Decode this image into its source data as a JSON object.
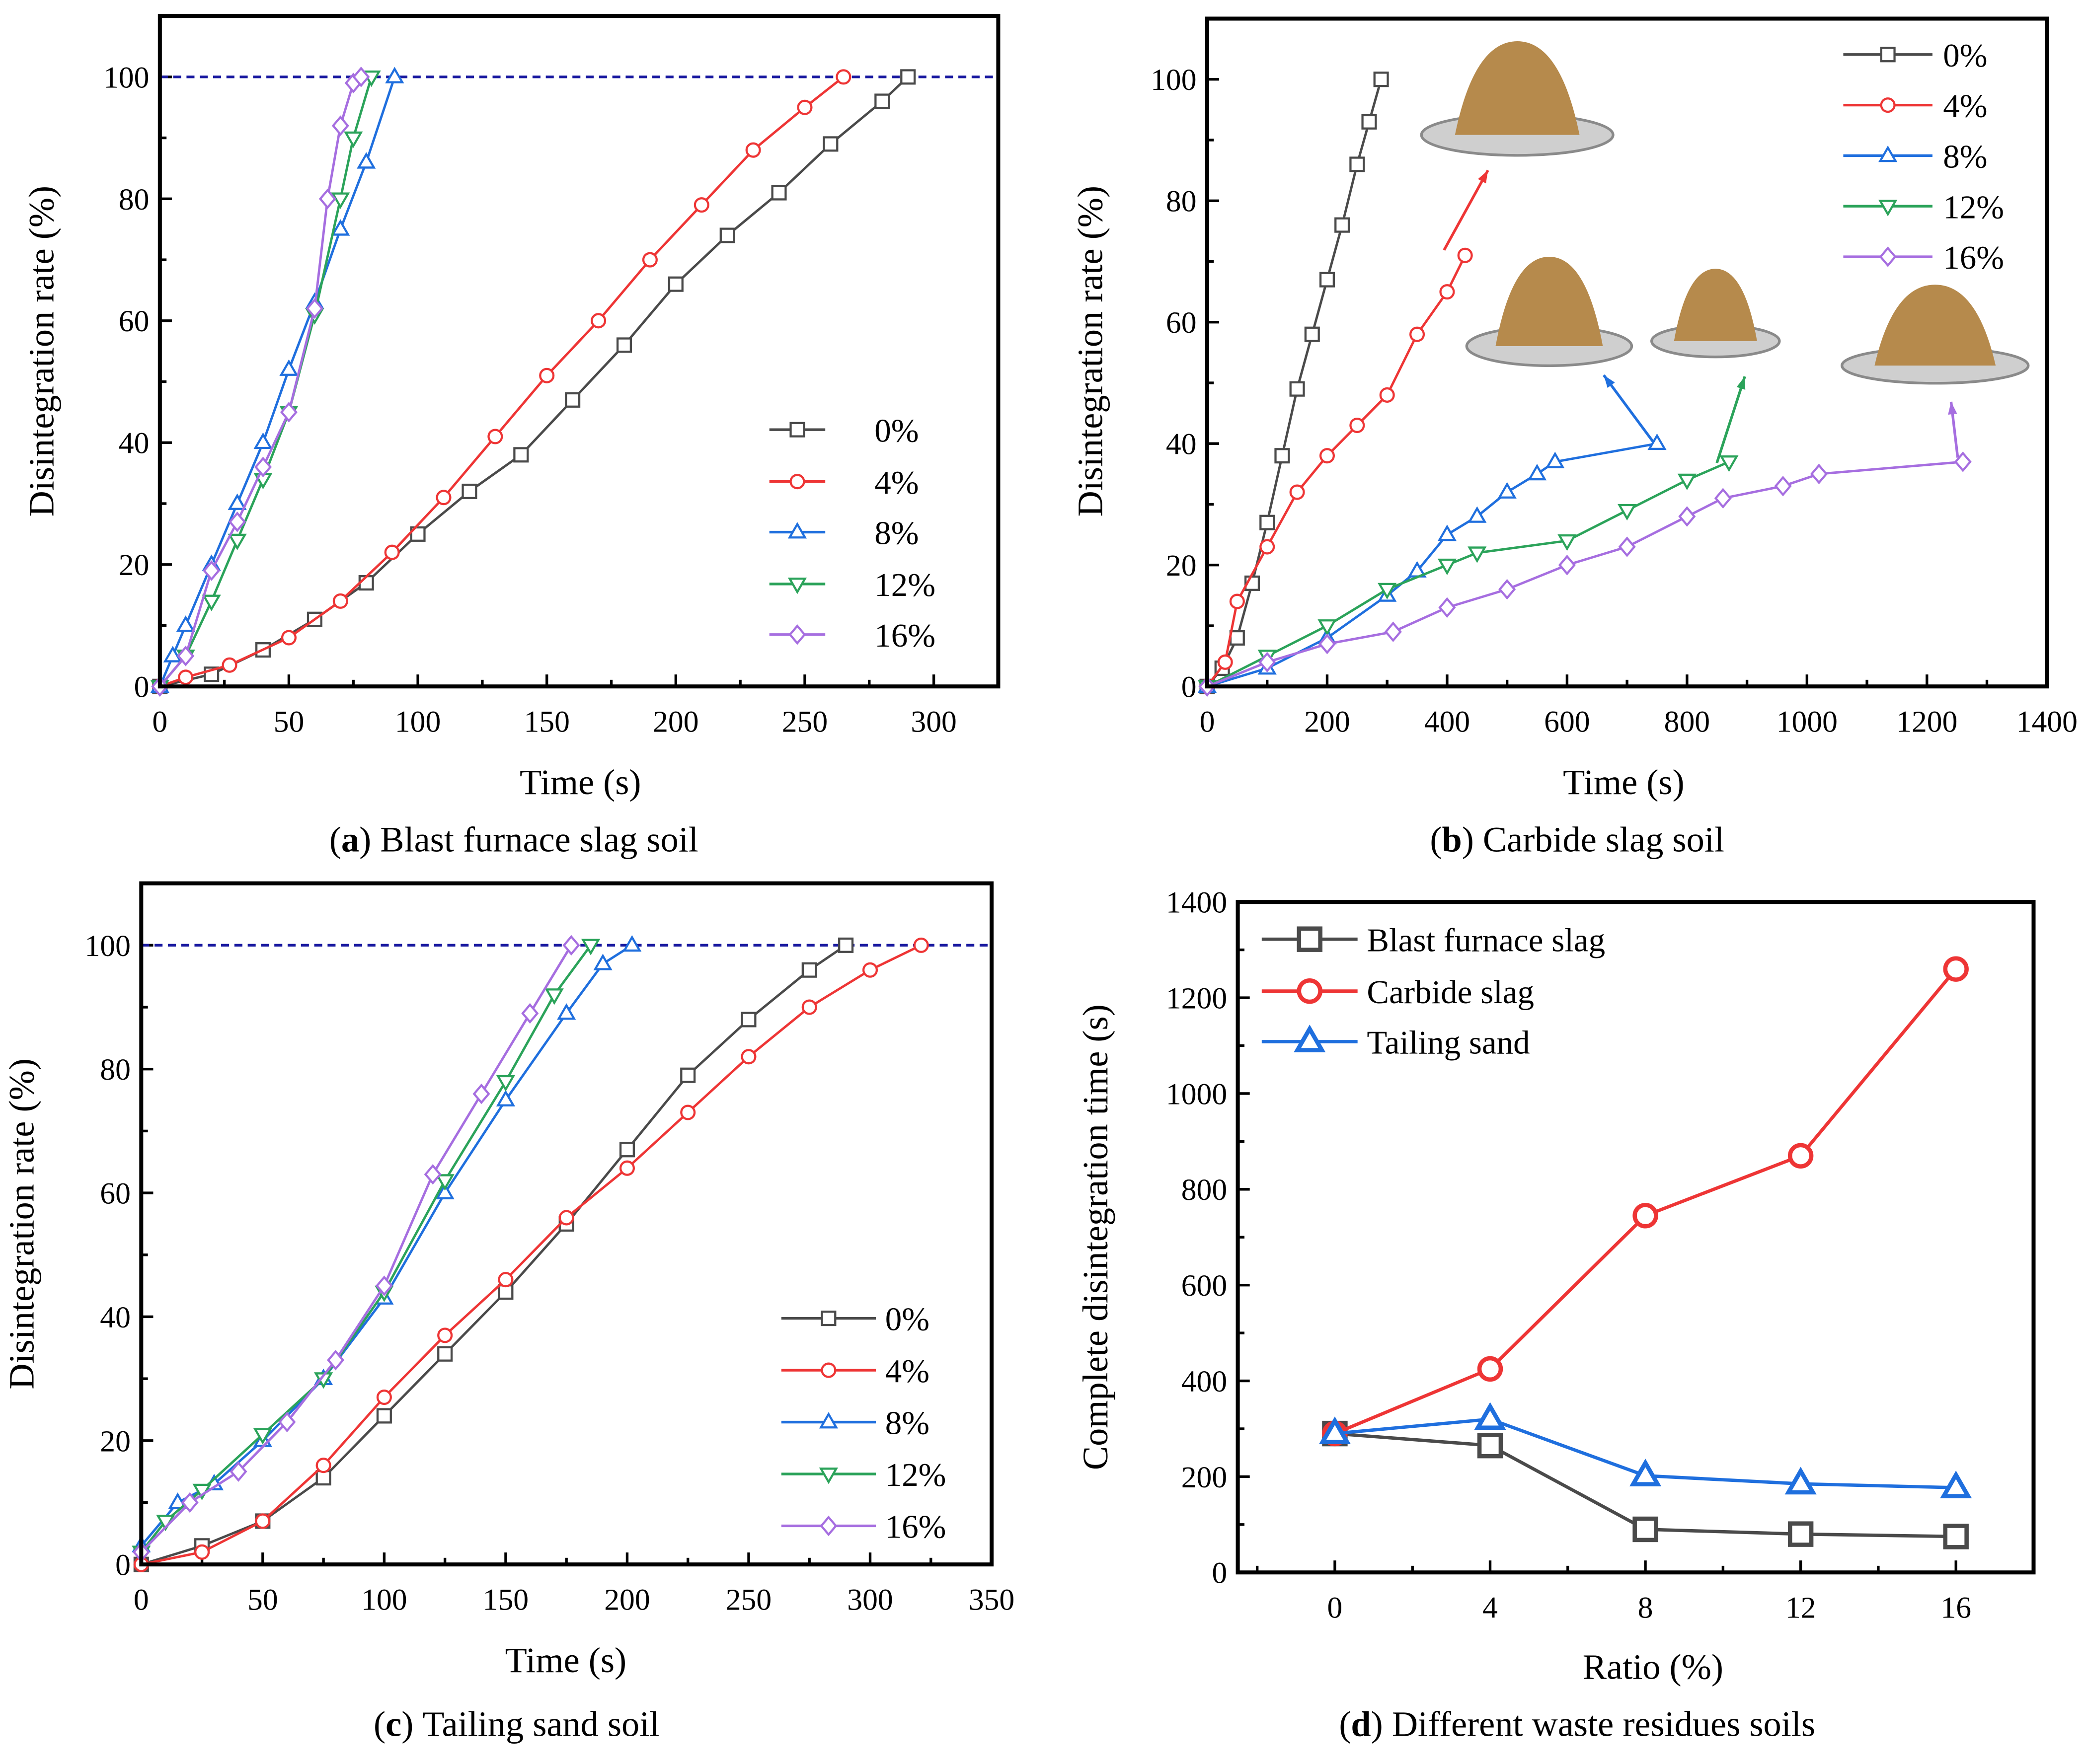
{
  "colors": {
    "s0": "#4a4a4a",
    "s4": "#ee3535",
    "s8": "#1f6fde",
    "s12": "#2ba35a",
    "s16": "#a66ee0",
    "ref": "#1a1aa0"
  },
  "chart_data": [
    {
      "id": "a",
      "type": "line",
      "caption_letter": "a",
      "caption_text": "Blast furnace slag soil",
      "xlabel": "Time (s)",
      "ylabel": "Disintegration rate (%)",
      "xlim": [
        0,
        325
      ],
      "ylim": [
        0,
        110
      ],
      "xticks": [
        0,
        50,
        100,
        150,
        200,
        250,
        300
      ],
      "yticks": [
        0,
        20,
        40,
        60,
        80,
        100
      ],
      "reference_line": 100,
      "legend_position": "bottom-right",
      "series": [
        {
          "name": "0%",
          "marker": "square",
          "color": "s0",
          "points": [
            [
              0,
              0
            ],
            [
              20,
              2
            ],
            [
              40,
              6
            ],
            [
              60,
              11
            ],
            [
              80,
              17
            ],
            [
              100,
              25
            ],
            [
              120,
              32
            ],
            [
              140,
              38
            ],
            [
              160,
              47
            ],
            [
              180,
              56
            ],
            [
              200,
              66
            ],
            [
              220,
              74
            ],
            [
              240,
              81
            ],
            [
              260,
              89
            ],
            [
              280,
              96
            ],
            [
              290,
              100
            ]
          ]
        },
        {
          "name": "4%",
          "marker": "circle",
          "color": "s4",
          "points": [
            [
              0,
              0
            ],
            [
              10,
              1.5
            ],
            [
              27,
              3.5
            ],
            [
              50,
              8
            ],
            [
              70,
              14
            ],
            [
              90,
              22
            ],
            [
              110,
              31
            ],
            [
              130,
              41
            ],
            [
              150,
              51
            ],
            [
              170,
              60
            ],
            [
              190,
              70
            ],
            [
              210,
              79
            ],
            [
              230,
              88
            ],
            [
              250,
              95
            ],
            [
              265,
              100
            ]
          ]
        },
        {
          "name": "8%",
          "marker": "triangle-up",
          "color": "s8",
          "points": [
            [
              0,
              0
            ],
            [
              5,
              5
            ],
            [
              10,
              10
            ],
            [
              20,
              20
            ],
            [
              30,
              30
            ],
            [
              40,
              40
            ],
            [
              50,
              52
            ],
            [
              60,
              63
            ],
            [
              70,
              75
            ],
            [
              80,
              86
            ],
            [
              91,
              100
            ]
          ]
        },
        {
          "name": "12%",
          "marker": "triangle-down",
          "color": "s12",
          "points": [
            [
              0,
              0
            ],
            [
              10,
              5
            ],
            [
              20,
              14
            ],
            [
              30,
              24
            ],
            [
              40,
              34
            ],
            [
              50,
              45
            ],
            [
              60,
              61
            ],
            [
              70,
              80
            ],
            [
              75,
              90
            ],
            [
              82,
              100
            ]
          ]
        },
        {
          "name": "16%",
          "marker": "diamond",
          "color": "s16",
          "points": [
            [
              0,
              0
            ],
            [
              10,
              5
            ],
            [
              20,
              19
            ],
            [
              30,
              27
            ],
            [
              40,
              36
            ],
            [
              50,
              45
            ],
            [
              60,
              62
            ],
            [
              65,
              80
            ],
            [
              70,
              92
            ],
            [
              75,
              99
            ],
            [
              78,
              100
            ]
          ]
        }
      ]
    },
    {
      "id": "b",
      "type": "line",
      "caption_letter": "b",
      "caption_text": "Carbide slag soil",
      "xlabel": "Time (s)",
      "ylabel": "Disintegration rate (%)",
      "xlim": [
        0,
        1400
      ],
      "ylim": [
        0,
        110
      ],
      "xticks": [
        0,
        200,
        400,
        600,
        800,
        1000,
        1200,
        1400
      ],
      "yticks": [
        0,
        20,
        40,
        60,
        80,
        100
      ],
      "legend_position": "top-right",
      "series": [
        {
          "name": "0%",
          "marker": "square",
          "color": "s0",
          "points": [
            [
              0,
              0
            ],
            [
              25,
              3
            ],
            [
              50,
              8
            ],
            [
              75,
              17
            ],
            [
              100,
              27
            ],
            [
              125,
              38
            ],
            [
              150,
              49
            ],
            [
              175,
              58
            ],
            [
              200,
              67
            ],
            [
              225,
              76
            ],
            [
              250,
              86
            ],
            [
              270,
              93
            ],
            [
              290,
              100
            ]
          ]
        },
        {
          "name": "4%",
          "marker": "circle",
          "color": "s4",
          "points": [
            [
              0,
              0
            ],
            [
              30,
              4
            ],
            [
              50,
              14
            ],
            [
              100,
              23
            ],
            [
              150,
              32
            ],
            [
              200,
              38
            ],
            [
              250,
              43
            ],
            [
              300,
              48
            ],
            [
              350,
              58
            ],
            [
              400,
              65
            ],
            [
              430,
              71
            ]
          ]
        },
        {
          "name": "8%",
          "marker": "triangle-up",
          "color": "s8",
          "points": [
            [
              0,
              0
            ],
            [
              100,
              3
            ],
            [
              200,
              8
            ],
            [
              300,
              15
            ],
            [
              350,
              19
            ],
            [
              400,
              25
            ],
            [
              450,
              28
            ],
            [
              500,
              32
            ],
            [
              550,
              35
            ],
            [
              580,
              37
            ],
            [
              750,
              40
            ]
          ]
        },
        {
          "name": "12%",
          "marker": "triangle-down",
          "color": "s12",
          "points": [
            [
              0,
              0
            ],
            [
              100,
              5
            ],
            [
              200,
              10
            ],
            [
              300,
              16
            ],
            [
              400,
              20
            ],
            [
              450,
              22
            ],
            [
              600,
              24
            ],
            [
              700,
              29
            ],
            [
              800,
              34
            ],
            [
              870,
              37
            ]
          ]
        },
        {
          "name": "16%",
          "marker": "diamond",
          "color": "s16",
          "points": [
            [
              0,
              0
            ],
            [
              100,
              4
            ],
            [
              200,
              7
            ],
            [
              310,
              9
            ],
            [
              400,
              13
            ],
            [
              500,
              16
            ],
            [
              600,
              20
            ],
            [
              700,
              23
            ],
            [
              800,
              28
            ],
            [
              860,
              31
            ],
            [
              960,
              33
            ],
            [
              1020,
              35
            ],
            [
              1260,
              37
            ]
          ]
        }
      ]
    },
    {
      "id": "c",
      "type": "line",
      "caption_letter": "c",
      "caption_text": "Tailing sand soil",
      "xlabel": "Time (s)",
      "ylabel": "Disintegration rate (%)",
      "xlim": [
        0,
        350
      ],
      "ylim": [
        0,
        110
      ],
      "xticks": [
        0,
        50,
        100,
        150,
        200,
        250,
        300,
        350
      ],
      "yticks": [
        0,
        20,
        40,
        60,
        80,
        100
      ],
      "reference_line": 100,
      "legend_position": "bottom-right",
      "series": [
        {
          "name": "0%",
          "marker": "square",
          "color": "s0",
          "points": [
            [
              0,
              0
            ],
            [
              25,
              3
            ],
            [
              50,
              7
            ],
            [
              75,
              14
            ],
            [
              100,
              24
            ],
            [
              125,
              34
            ],
            [
              150,
              44
            ],
            [
              175,
              55
            ],
            [
              200,
              67
            ],
            [
              225,
              79
            ],
            [
              250,
              88
            ],
            [
              275,
              96
            ],
            [
              290,
              100
            ]
          ]
        },
        {
          "name": "4%",
          "marker": "circle",
          "color": "s4",
          "points": [
            [
              0,
              0
            ],
            [
              25,
              2
            ],
            [
              50,
              7
            ],
            [
              75,
              16
            ],
            [
              100,
              27
            ],
            [
              125,
              37
            ],
            [
              150,
              46
            ],
            [
              175,
              56
            ],
            [
              200,
              64
            ],
            [
              225,
              73
            ],
            [
              250,
              82
            ],
            [
              275,
              90
            ],
            [
              300,
              96
            ],
            [
              321,
              100
            ]
          ]
        },
        {
          "name": "8%",
          "marker": "triangle-up",
          "color": "s8",
          "points": [
            [
              0,
              3
            ],
            [
              15,
              10
            ],
            [
              30,
              13
            ],
            [
              50,
              20
            ],
            [
              75,
              30
            ],
            [
              100,
              43
            ],
            [
              125,
              60
            ],
            [
              150,
              75
            ],
            [
              175,
              89
            ],
            [
              190,
              97
            ],
            [
              202,
              100
            ]
          ]
        },
        {
          "name": "12%",
          "marker": "triangle-down",
          "color": "s12",
          "points": [
            [
              0,
              2
            ],
            [
              10,
              7
            ],
            [
              25,
              12
            ],
            [
              50,
              21
            ],
            [
              75,
              30
            ],
            [
              100,
              44
            ],
            [
              125,
              62
            ],
            [
              150,
              78
            ],
            [
              170,
              92
            ],
            [
              185,
              100
            ]
          ]
        },
        {
          "name": "16%",
          "marker": "diamond",
          "color": "s16",
          "points": [
            [
              0,
              2
            ],
            [
              20,
              10
            ],
            [
              40,
              15
            ],
            [
              60,
              23
            ],
            [
              80,
              33
            ],
            [
              100,
              45
            ],
            [
              120,
              63
            ],
            [
              140,
              76
            ],
            [
              160,
              89
            ],
            [
              177,
              100
            ]
          ]
        }
      ]
    },
    {
      "id": "d",
      "type": "line",
      "caption_letter": "d",
      "caption_text": "Different waste residues soils",
      "xlabel": "Ratio (%)",
      "ylabel": "Complete disintegration time (s)",
      "xlim": [
        -2.5,
        18
      ],
      "ylim": [
        0,
        1400
      ],
      "xticks": [
        0,
        4,
        8,
        12,
        16
      ],
      "yticks": [
        0,
        200,
        400,
        600,
        800,
        1000,
        1200,
        1400
      ],
      "legend_position": "top-left",
      "series": [
        {
          "name": "Blast furnace slag",
          "marker": "square",
          "color": "s0",
          "points": [
            [
              0,
              290
            ],
            [
              4,
              265
            ],
            [
              8,
              90
            ],
            [
              12,
              80
            ],
            [
              16,
              75
            ]
          ]
        },
        {
          "name": "Carbide slag",
          "marker": "circle",
          "color": "s4",
          "points": [
            [
              0,
              290
            ],
            [
              4,
              425
            ],
            [
              8,
              745
            ],
            [
              12,
              870
            ],
            [
              16,
              1260
            ]
          ]
        },
        {
          "name": "Tailing sand",
          "marker": "triangle-up",
          "color": "s8",
          "points": [
            [
              0,
              290
            ],
            [
              4,
              320
            ],
            [
              8,
              202
            ],
            [
              12,
              185
            ],
            [
              16,
              177
            ]
          ]
        }
      ]
    }
  ]
}
